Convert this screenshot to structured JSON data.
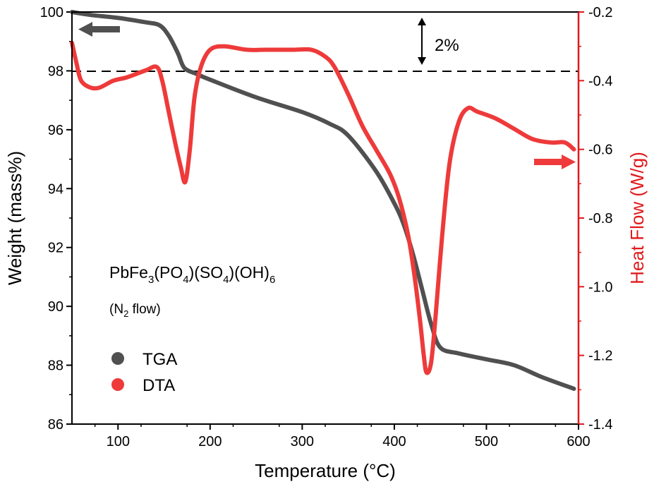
{
  "chart_data": {
    "type": "line",
    "xlabel": "Temperature (°C)",
    "ylabel_left": "Weight (mass%)",
    "ylabel_right": "Heat Flow (W/g)",
    "xlim": [
      50,
      600
    ],
    "ylim_left": [
      86,
      100
    ],
    "ylim_right": [
      -1.4,
      -0.2
    ],
    "x_ticks": [
      100,
      200,
      300,
      400,
      500,
      600
    ],
    "y_left_ticks": [
      86,
      88,
      90,
      92,
      94,
      96,
      98,
      100
    ],
    "y_right_ticks": [
      -1.4,
      -1.2,
      -1.0,
      -0.8,
      -0.6,
      -0.4,
      -0.2
    ],
    "y_right_tick_labels": [
      "-1.4",
      "-1.2",
      "-1.0",
      "-0.8",
      "-0.6",
      "-0.4",
      "-0.2"
    ],
    "grid": false,
    "legend_placement": "bottom-left",
    "colors": {
      "tga": "#505050",
      "dta": "#ee3a3a",
      "axis_right": "#e0191b"
    },
    "annotations": {
      "formula": {
        "base": [
          "PbFe",
          "(PO",
          ")(SO",
          ")(OH)"
        ],
        "subs": [
          "3",
          "4",
          "4",
          "6"
        ]
      },
      "atmosphere": {
        "pre": "(N",
        "sub": "2",
        "post": " flow)"
      },
      "step": "2%",
      "reference_line_y": 98
    },
    "series": [
      {
        "name": "TGA",
        "axis": "left",
        "x": [
          50,
          70,
          100,
          130,
          145,
          155,
          165,
          172,
          185,
          200,
          250,
          300,
          330,
          350,
          380,
          400,
          410,
          420,
          430,
          440,
          450,
          470,
          500,
          530,
          560,
          595
        ],
        "y": [
          100.0,
          99.9,
          99.8,
          99.65,
          99.55,
          99.2,
          98.6,
          98.1,
          97.9,
          97.7,
          97.1,
          96.6,
          96.2,
          95.8,
          94.6,
          93.5,
          92.8,
          91.8,
          90.6,
          89.4,
          88.6,
          88.4,
          88.2,
          88.0,
          87.6,
          87.2
        ]
      },
      {
        "name": "DTA",
        "axis": "right",
        "x": [
          50,
          55,
          60,
          70,
          80,
          95,
          110,
          130,
          142,
          148,
          155,
          162,
          168,
          173,
          178,
          183,
          190,
          200,
          215,
          240,
          260,
          290,
          310,
          325,
          335,
          350,
          365,
          380,
          395,
          405,
          415,
          422,
          428,
          432,
          435,
          440,
          445,
          452,
          460,
          470,
          480,
          490,
          510,
          530,
          550,
          570,
          585,
          595
        ],
        "y": [
          -0.29,
          -0.35,
          -0.4,
          -0.42,
          -0.42,
          -0.4,
          -0.39,
          -0.37,
          -0.36,
          -0.4,
          -0.49,
          -0.58,
          -0.65,
          -0.695,
          -0.6,
          -0.45,
          -0.36,
          -0.31,
          -0.3,
          -0.31,
          -0.31,
          -0.31,
          -0.31,
          -0.33,
          -0.36,
          -0.44,
          -0.53,
          -0.6,
          -0.67,
          -0.74,
          -0.85,
          -0.97,
          -1.1,
          -1.2,
          -1.25,
          -1.22,
          -1.08,
          -0.85,
          -0.64,
          -0.52,
          -0.48,
          -0.49,
          -0.51,
          -0.54,
          -0.57,
          -0.58,
          -0.58,
          -0.6
        ]
      }
    ]
  }
}
